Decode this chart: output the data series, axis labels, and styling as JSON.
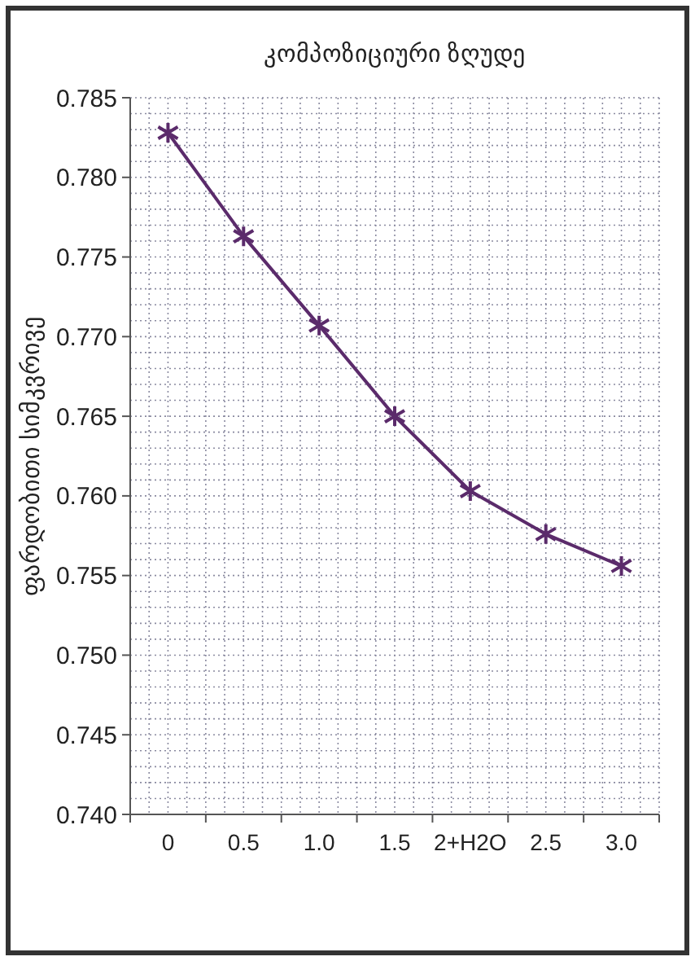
{
  "chart_data": {
    "type": "line",
    "title": "კომპოზიციური ზღუდე",
    "ylabel": "ფარდობითი სიმკვრივე",
    "categories": [
      "0",
      "0.5",
      "1.0",
      "1.5",
      "2+H2O",
      "2.5",
      "3.0"
    ],
    "series": [
      {
        "color": "#5b2b6b",
        "values": [
          0.7828,
          0.7763,
          0.7707,
          0.765,
          0.7603,
          0.7576,
          0.7556
        ]
      }
    ],
    "ylim": [
      0.74,
      0.785
    ],
    "yticks": [
      {
        "value": 0.74,
        "label": "0.740"
      },
      0.745,
      {
        "value": 0.75,
        "label": "0.750"
      },
      0.755,
      {
        "value": 0.76,
        "label": "0.760"
      },
      0.765,
      {
        "value": 0.77,
        "label": "0.770"
      },
      0.775,
      {
        "value": 0.78,
        "label": "0.780"
      },
      0.785
    ],
    "grid": true,
    "marker": "cross",
    "line_style": "solid"
  }
}
